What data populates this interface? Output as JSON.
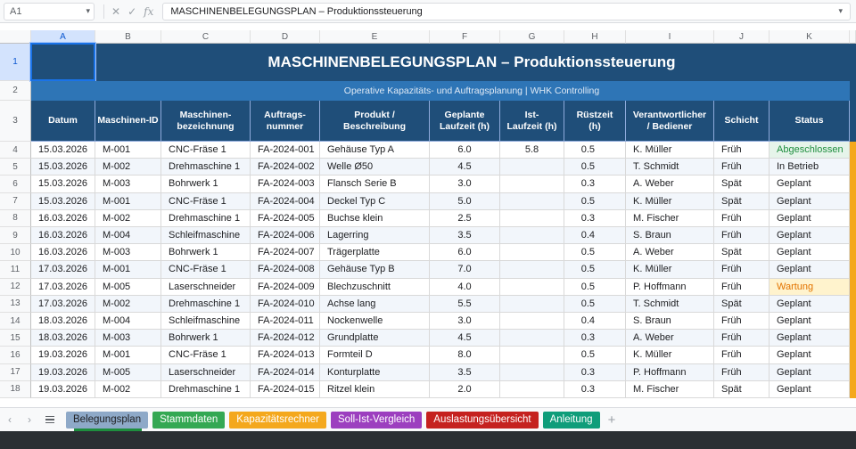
{
  "formula_bar": {
    "cell_ref": "A1",
    "formula": "MASCHINENBELEGUNGSPLAN – Produktionssteuerung"
  },
  "columns": [
    "A",
    "B",
    "C",
    "D",
    "E",
    "F",
    "G",
    "H",
    "I",
    "J",
    "K"
  ],
  "row_numbers": [
    "1",
    "2",
    "3",
    "4",
    "5",
    "6",
    "7",
    "8",
    "9",
    "10",
    "11",
    "12",
    "13",
    "14",
    "15",
    "16",
    "17",
    "18"
  ],
  "sheet": {
    "title": "MASCHINENBELEGUNGSPLAN – Produktionssteuerung",
    "subtitle": "Operative Kapazitäts- und Auftragsplanung | WHK Controlling",
    "headers": [
      "Datum",
      "Maschinen-ID",
      "Maschinen-\nbezeichnung",
      "Auftrags-\nnummer",
      "Produkt /\nBeschreibung",
      "Geplante\nLaufzeit (h)",
      "Ist-\nLaufzeit (h)",
      "Rüstzeit\n(h)",
      "Verantwortlicher\n/ Bediener",
      "Schicht",
      "Status"
    ],
    "rows": [
      [
        "15.03.2026",
        "M-001",
        "CNC-Fräse 1",
        "FA-2024-001",
        "Gehäuse Typ A",
        "6.0",
        "5.8",
        "0.5",
        "K. Müller",
        "Früh",
        "Abgeschlossen"
      ],
      [
        "15.03.2026",
        "M-002",
        "Drehmaschine 1",
        "FA-2024-002",
        "Welle Ø50",
        "4.5",
        "",
        "0.5",
        "T. Schmidt",
        "Früh",
        "In Betrieb"
      ],
      [
        "15.03.2026",
        "M-003",
        "Bohrwerk 1",
        "FA-2024-003",
        "Flansch Serie B",
        "3.0",
        "",
        "0.3",
        "A. Weber",
        "Spät",
        "Geplant"
      ],
      [
        "15.03.2026",
        "M-001",
        "CNC-Fräse 1",
        "FA-2024-004",
        "Deckel Typ C",
        "5.0",
        "",
        "0.5",
        "K. Müller",
        "Spät",
        "Geplant"
      ],
      [
        "16.03.2026",
        "M-002",
        "Drehmaschine 1",
        "FA-2024-005",
        "Buchse klein",
        "2.5",
        "",
        "0.3",
        "M. Fischer",
        "Früh",
        "Geplant"
      ],
      [
        "16.03.2026",
        "M-004",
        "Schleifmaschine",
        "FA-2024-006",
        "Lagerring",
        "3.5",
        "",
        "0.4",
        "S. Braun",
        "Früh",
        "Geplant"
      ],
      [
        "16.03.2026",
        "M-003",
        "Bohrwerk 1",
        "FA-2024-007",
        "Trägerplatte",
        "6.0",
        "",
        "0.5",
        "A. Weber",
        "Spät",
        "Geplant"
      ],
      [
        "17.03.2026",
        "M-001",
        "CNC-Fräse 1",
        "FA-2024-008",
        "Gehäuse Typ B",
        "7.0",
        "",
        "0.5",
        "K. Müller",
        "Früh",
        "Geplant"
      ],
      [
        "17.03.2026",
        "M-005",
        "Laserschneider",
        "FA-2024-009",
        "Blechzuschnitt",
        "4.0",
        "",
        "0.5",
        "P. Hoffmann",
        "Früh",
        "Wartung"
      ],
      [
        "17.03.2026",
        "M-002",
        "Drehmaschine 1",
        "FA-2024-010",
        "Achse lang",
        "5.5",
        "",
        "0.5",
        "T. Schmidt",
        "Spät",
        "Geplant"
      ],
      [
        "18.03.2026",
        "M-004",
        "Schleifmaschine",
        "FA-2024-011",
        "Nockenwelle",
        "3.0",
        "",
        "0.4",
        "S. Braun",
        "Früh",
        "Geplant"
      ],
      [
        "18.03.2026",
        "M-003",
        "Bohrwerk 1",
        "FA-2024-012",
        "Grundplatte",
        "4.5",
        "",
        "0.3",
        "A. Weber",
        "Früh",
        "Geplant"
      ],
      [
        "19.03.2026",
        "M-001",
        "CNC-Fräse 1",
        "FA-2024-013",
        "Formteil D",
        "8.0",
        "",
        "0.5",
        "K. Müller",
        "Früh",
        "Geplant"
      ],
      [
        "19.03.2026",
        "M-005",
        "Laserschneider",
        "FA-2024-014",
        "Konturplatte",
        "3.5",
        "",
        "0.3",
        "P. Hoffmann",
        "Früh",
        "Geplant"
      ],
      [
        "19.03.2026",
        "M-002",
        "Drehmaschine 1",
        "FA-2024-015",
        "Ritzel klein",
        "2.0",
        "",
        "0.3",
        "M. Fischer",
        "Spät",
        "Geplant"
      ]
    ]
  },
  "status_styles": {
    "Abgeschlossen": "st-green",
    "Wartung": "st-yellow"
  },
  "tabs": [
    {
      "label": "Belegungsplan",
      "color": "#8ea9c8",
      "active": true
    },
    {
      "label": "Stammdaten",
      "color": "#34a853"
    },
    {
      "label": "Kapazitätsrechner",
      "color": "#f4a81d"
    },
    {
      "label": "Soll-Ist-Vergleich",
      "color": "#9c3fbf"
    },
    {
      "label": "Auslastungsübersicht",
      "color": "#c5221f"
    },
    {
      "label": "Anleitung",
      "color": "#0f9d7a"
    }
  ],
  "colors": {
    "header_dark": "#1f4e79",
    "subtitle_blue": "#2e75b6",
    "status_strip": "#f4a81d"
  }
}
